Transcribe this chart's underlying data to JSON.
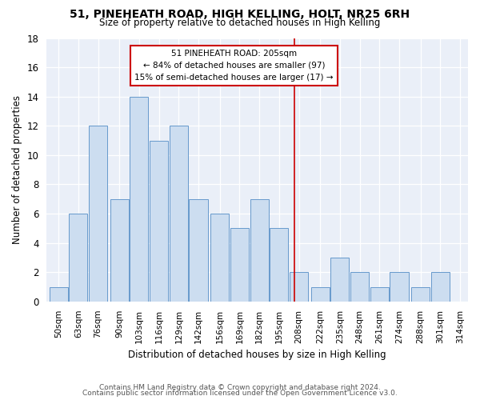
{
  "title": "51, PINEHEATH ROAD, HIGH KELLING, HOLT, NR25 6RH",
  "subtitle": "Size of property relative to detached houses in High Kelling",
  "xlabel": "Distribution of detached houses by size in High Kelling",
  "ylabel": "Number of detached properties",
  "bar_labels": [
    "50sqm",
    "63sqm",
    "76sqm",
    "90sqm",
    "103sqm",
    "116sqm",
    "129sqm",
    "142sqm",
    "156sqm",
    "169sqm",
    "182sqm",
    "195sqm",
    "208sqm",
    "222sqm",
    "235sqm",
    "248sqm",
    "261sqm",
    "274sqm",
    "288sqm",
    "301sqm",
    "314sqm"
  ],
  "bar_heights": [
    1,
    6,
    12,
    7,
    14,
    11,
    12,
    7,
    6,
    5,
    7,
    5,
    2,
    1,
    3,
    2,
    1,
    2,
    1,
    2
  ],
  "bins": [
    50,
    63,
    76,
    90,
    103,
    116,
    129,
    142,
    156,
    169,
    182,
    195,
    208,
    222,
    235,
    248,
    261,
    274,
    288,
    301
  ],
  "bar_color": "#ccddf0",
  "bar_edge_color": "#6699cc",
  "property_size": 205,
  "vline_color": "#cc0000",
  "annotation_text": "51 PINEHEATH ROAD: 205sqm\n← 84% of detached houses are smaller (97)\n15% of semi-detached houses are larger (17) →",
  "annotation_box_color": "#cc0000",
  "footer1": "Contains HM Land Registry data © Crown copyright and database right 2024.",
  "footer2": "Contains public sector information licensed under the Open Government Licence v3.0.",
  "ylim": [
    0,
    18
  ],
  "yticks": [
    0,
    2,
    4,
    6,
    8,
    10,
    12,
    14,
    16,
    18
  ],
  "bg_color": "#eaeff8",
  "bin_width": 13
}
